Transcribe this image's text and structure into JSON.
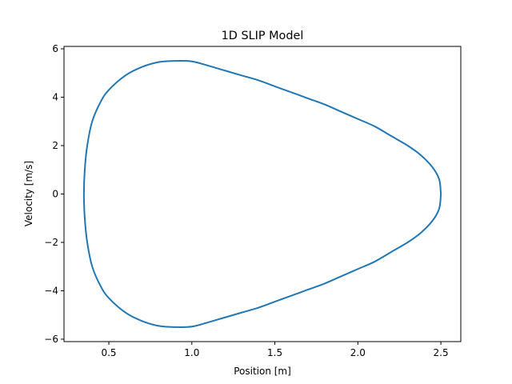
{
  "chart_data": {
    "type": "line",
    "title": "1D SLIP Model",
    "xlabel": "Position [m]",
    "ylabel": "Velocity [m/s]",
    "xlim": [
      0.23,
      2.62
    ],
    "ylim": [
      -6.1,
      6.1
    ],
    "xticks": [
      0.5,
      1.0,
      1.5,
      2.0,
      2.5
    ],
    "xtick_labels": [
      "0.5",
      "1.0",
      "1.5",
      "2.0",
      "2.5"
    ],
    "yticks": [
      -6,
      -4,
      -2,
      0,
      2,
      4,
      6
    ],
    "ytick_labels": [
      "−6",
      "−4",
      "−2",
      "0",
      "2",
      "4",
      "6"
    ],
    "grid": false,
    "series": [
      {
        "color": "#1f77b4",
        "x": [
          2.5,
          2.49,
          2.45,
          2.38,
          2.3,
          2.2,
          2.1,
          2.0,
          1.9,
          1.8,
          1.7,
          1.6,
          1.5,
          1.4,
          1.3,
          1.2,
          1.1,
          1.0,
          0.9,
          0.8,
          0.7,
          0.6,
          0.5,
          0.45,
          0.4,
          0.37,
          0.355,
          0.35,
          0.355,
          0.37,
          0.4,
          0.45,
          0.5,
          0.6,
          0.7,
          0.8,
          0.9,
          1.0,
          1.1,
          1.2,
          1.3,
          1.4,
          1.5,
          1.6,
          1.7,
          1.8,
          1.9,
          2.0,
          2.1,
          2.2,
          2.3,
          2.38,
          2.45,
          2.49,
          2.5
        ],
        "y": [
          0.0,
          0.6,
          1.1,
          1.6,
          2.0,
          2.4,
          2.8,
          3.1,
          3.4,
          3.7,
          3.95,
          4.2,
          4.45,
          4.7,
          4.9,
          5.1,
          5.3,
          5.48,
          5.5,
          5.45,
          5.25,
          4.9,
          4.3,
          3.8,
          3.0,
          2.0,
          1.0,
          0.0,
          -1.0,
          -2.0,
          -3.0,
          -3.8,
          -4.3,
          -4.9,
          -5.25,
          -5.45,
          -5.5,
          -5.48,
          -5.3,
          -5.1,
          -4.9,
          -4.7,
          -4.45,
          -4.2,
          -3.95,
          -3.7,
          -3.4,
          -3.1,
          -2.8,
          -2.4,
          -2.0,
          -1.6,
          -1.1,
          -0.6,
          0.0
        ]
      }
    ]
  }
}
